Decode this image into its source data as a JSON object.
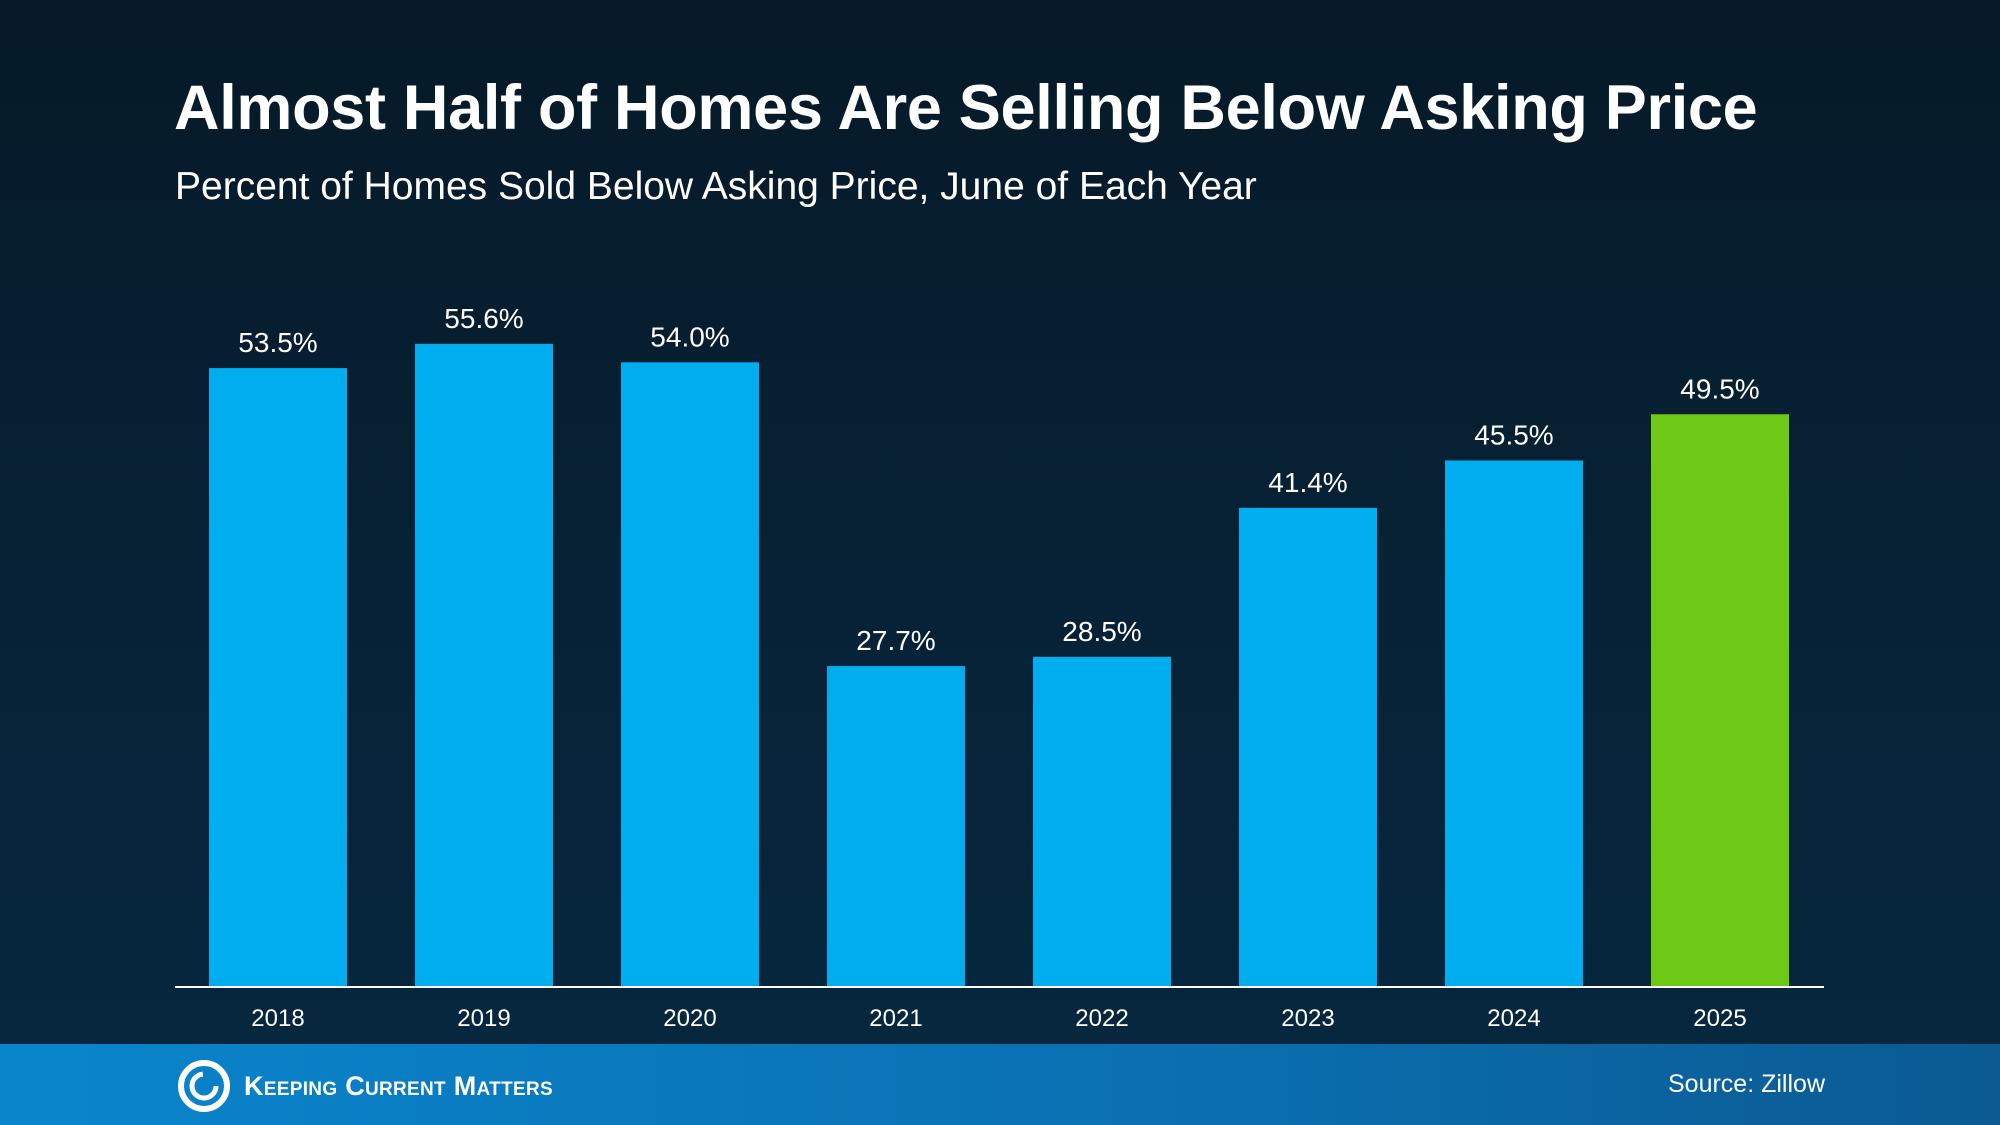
{
  "header": {
    "title": "Almost Half of Homes Are Selling Below Asking Price",
    "subtitle": "Percent of Homes Sold Below Asking Price, June of Each Year"
  },
  "chart_data": {
    "type": "bar",
    "title": "Almost Half of Homes Are Selling Below Asking Price",
    "subtitle": "Percent of Homes Sold Below Asking Price, June of Each Year",
    "categories": [
      "2018",
      "2019",
      "2020",
      "2021",
      "2022",
      "2023",
      "2024",
      "2025"
    ],
    "values": [
      53.5,
      55.6,
      54.0,
      27.7,
      28.5,
      41.4,
      45.5,
      49.5
    ],
    "labels": [
      "53.5%",
      "55.6%",
      "54.0%",
      "27.7%",
      "28.5%",
      "41.4%",
      "45.5%",
      "49.5%"
    ],
    "ylim": [
      0,
      60
    ],
    "grid": false,
    "colors": {
      "default": "#00adef",
      "highlight": "#6cc916",
      "highlight_category": "2025"
    }
  },
  "footer": {
    "brand": "Keeping Current Matters",
    "source": "Source: Zillow"
  }
}
